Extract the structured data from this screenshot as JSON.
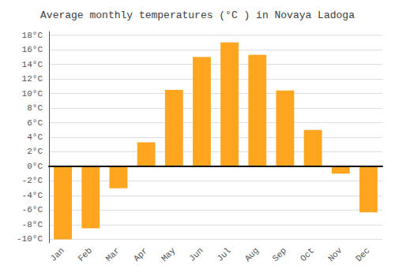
{
  "chart_data": {
    "type": "bar",
    "title": "Average monthly temperatures (°C ) in Novaya Ladoga",
    "categories": [
      "Jan",
      "Feb",
      "Mar",
      "Apr",
      "May",
      "Jun",
      "Jul",
      "Aug",
      "Sep",
      "Oct",
      "Nov",
      "Dec"
    ],
    "values": [
      -10,
      -8.5,
      -3,
      3.3,
      10.5,
      15,
      17,
      15.3,
      10.4,
      5,
      -1,
      -6.3
    ],
    "color": "#FFA520",
    "ylim": [
      -10.5,
      18.5
    ],
    "yticks": [
      {
        "value": -10,
        "label": "-10°C"
      },
      {
        "value": -8,
        "label": "-8°C"
      },
      {
        "value": -6,
        "label": "-6°C"
      },
      {
        "value": -4,
        "label": "-4°C"
      },
      {
        "value": -2,
        "label": "-2°C"
      },
      {
        "value": 0,
        "label": "0°C"
      },
      {
        "value": 2,
        "label": "2°C"
      },
      {
        "value": 4,
        "label": "4°C"
      },
      {
        "value": 6,
        "label": "6°C"
      },
      {
        "value": 8,
        "label": "8°C"
      },
      {
        "value": 10,
        "label": "10°C"
      },
      {
        "value": 12,
        "label": "12°C"
      },
      {
        "value": 14,
        "label": "14°C"
      },
      {
        "value": 16,
        "label": "16°C"
      },
      {
        "value": 18,
        "label": "18°C"
      }
    ],
    "grid": true
  }
}
